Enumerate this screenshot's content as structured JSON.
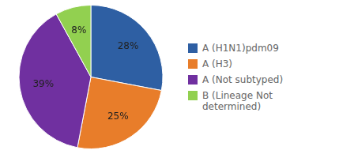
{
  "chart_data": {
    "type": "pie",
    "categories": [
      "A (H1N1)pdm09",
      "A (H3)",
      "A (Not subtyped)",
      "B (Lineage Not\ndetermined)"
    ],
    "values": [
      28,
      25,
      39,
      8
    ],
    "value_labels": [
      "28%",
      "25%",
      "39%",
      "8%"
    ],
    "colors": [
      "#2e5fa3",
      "#e87d2a",
      "#7030a0",
      "#92d050"
    ],
    "data_labels": true,
    "legend": "right"
  }
}
